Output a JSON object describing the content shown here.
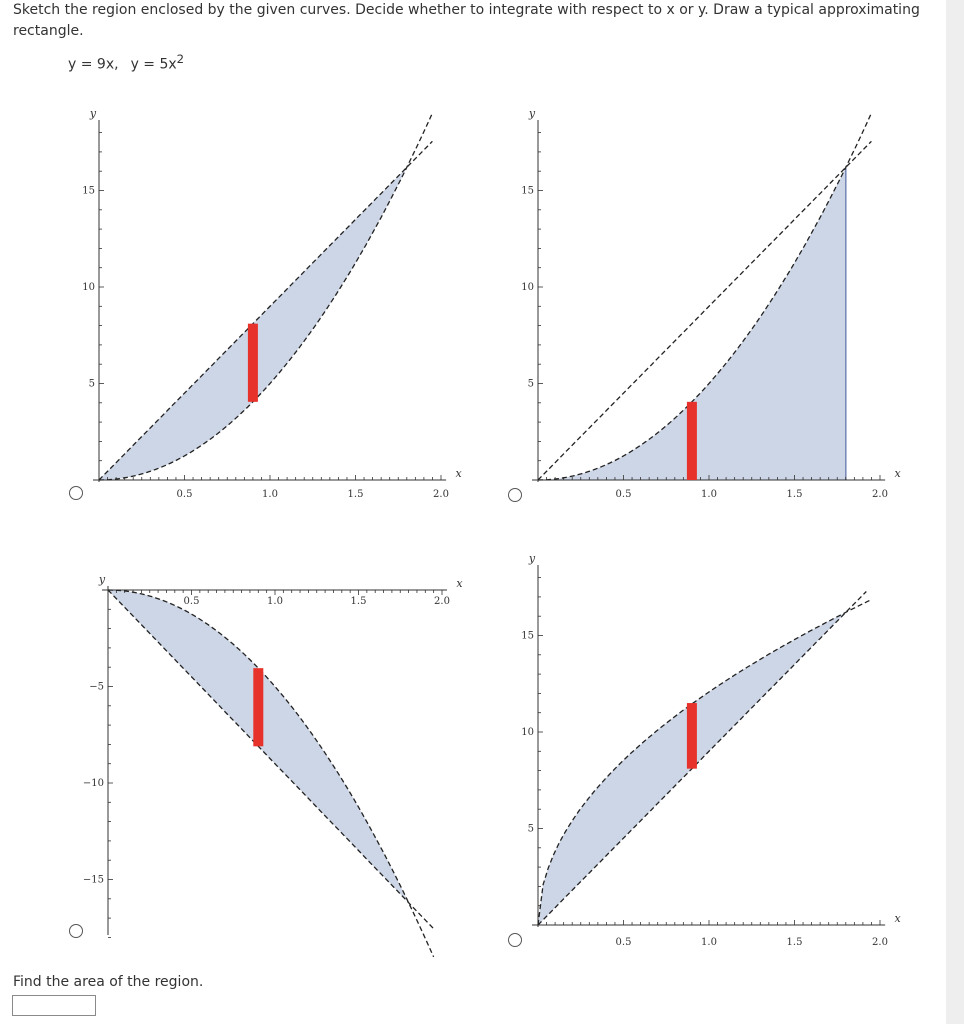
{
  "question": {
    "text": "Sketch the region enclosed by the given curves. Decide whether to integrate with respect to x or y. Draw a typical approximating rectangle.",
    "curve1": "y = 9x,",
    "curve2": "y = 5x",
    "curve2_exponent": "2"
  },
  "colors": {
    "region_fill": "#cdd6e6",
    "rectangle": "#e6322a",
    "axis": "#333333"
  },
  "options": [
    {
      "id": "A",
      "selected": false,
      "chart_data": {
        "type": "area",
        "x_label": "x",
        "y_label": "y",
        "x_ticks": [
          "0.5",
          "1.0",
          "1.5",
          "2.0"
        ],
        "y_ticks": [
          "5",
          "10",
          "15"
        ],
        "series": [],
        "shaded": "between y = 9x and y = 5x^2 for 0 ≤ x ≤ 1.8",
        "rectangle": {
          "x": 0.9,
          "y_from": 4.05,
          "y_to": 8.1
        }
      }
    },
    {
      "id": "B",
      "selected": false,
      "chart_data": {
        "type": "area",
        "x_label": "x",
        "y_label": "y",
        "x_ticks": [
          "0.5",
          "1.0",
          "1.5",
          "2.0"
        ],
        "y_ticks": [
          "5",
          "10",
          "15"
        ],
        "series": [],
        "shaded": "under y = 5x^2 for 0 ≤ x ≤ 1.8",
        "rectangle": {
          "x": 0.9,
          "y_from": 0,
          "y_to": 4.05
        }
      }
    },
    {
      "id": "C",
      "selected": false,
      "chart_data": {
        "type": "area",
        "x_label": "x",
        "y_label": "y",
        "x_ticks": [
          "0.5",
          "1.0",
          "1.5",
          "2.0"
        ],
        "y_ticks": [
          "-5",
          "-10",
          "-15"
        ],
        "series": [],
        "shaded": "between y = -9x and y = -5x^2 for 0 ≤ x ≤ 1.8",
        "rectangle": {
          "x": 0.9,
          "y_from": -8.1,
          "y_to": -4.05
        }
      }
    },
    {
      "id": "D",
      "selected": false,
      "chart_data": {
        "type": "area",
        "x_label": "x",
        "y_label": "y",
        "x_ticks": [
          "0.5",
          "1.0",
          "1.5",
          "2.0"
        ],
        "y_ticks": [
          "5",
          "10",
          "15"
        ],
        "series": [],
        "shaded": "between y = 9x and y = sqrt(145.8 x) for 0 ≤ x ≤ 1.8",
        "rectangle": {
          "x": 0.9,
          "y_from": 8.1,
          "y_to": 11.5
        }
      }
    }
  ],
  "answer": {
    "label": "Find the area of the region.",
    "value": ""
  }
}
